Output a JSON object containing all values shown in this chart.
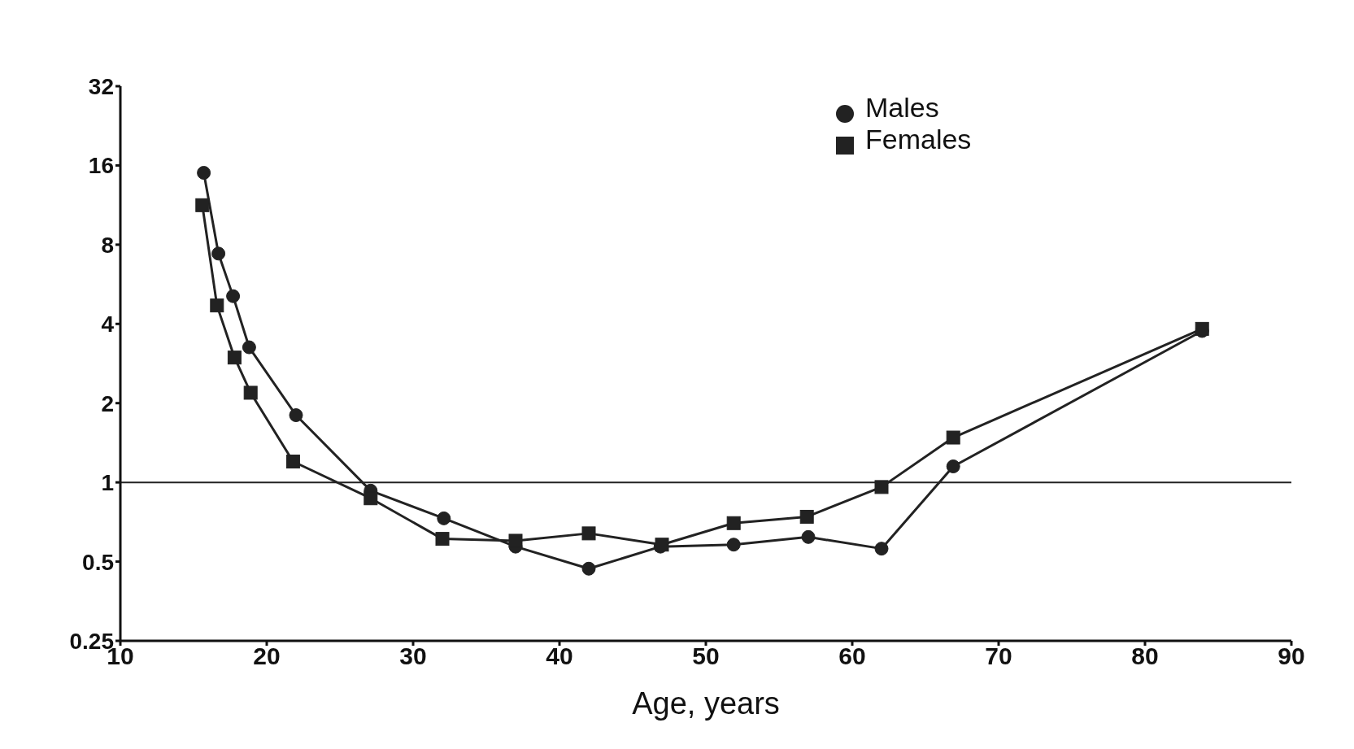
{
  "chart_data": {
    "type": "line",
    "xlabel": "Age, years",
    "log": "y",
    "xlim": [
      10,
      90
    ],
    "xticks": [
      10,
      20,
      30,
      40,
      50,
      60,
      70,
      80,
      90
    ],
    "ylim": [
      0.25,
      32
    ],
    "yticks": [
      0.25,
      0.5,
      1,
      2,
      4,
      8,
      16,
      32
    ],
    "grid": false,
    "legend": "top right",
    "line_style": "solid",
    "series": [
      {
        "name": "Males",
        "color": "#222222",
        "marker": "circle",
        "x": [
          15.7,
          16.7,
          17.7,
          18.8,
          22.0,
          27.1,
          32.1,
          37.0,
          42.0,
          46.9,
          51.9,
          57.0,
          62.0,
          66.9,
          83.9
        ],
        "values": [
          15.0,
          7.4,
          5.1,
          3.26,
          1.8,
          0.93,
          0.73,
          0.57,
          0.47,
          0.57,
          0.58,
          0.62,
          0.56,
          1.15,
          3.76
        ]
      },
      {
        "name": "Females",
        "color": "#222222",
        "marker": "square",
        "x": [
          15.6,
          16.6,
          17.8,
          18.9,
          21.8,
          27.1,
          32.0,
          37.0,
          42.0,
          47.0,
          51.9,
          56.9,
          62.0,
          66.9,
          83.9
        ],
        "values": [
          11.3,
          4.7,
          2.98,
          2.19,
          1.2,
          0.87,
          0.61,
          0.6,
          0.64,
          0.58,
          0.7,
          0.74,
          0.96,
          1.48,
          3.83
        ]
      }
    ],
    "ref_lines": [
      {
        "axis": "y",
        "value": 1,
        "color": "#222222",
        "line_style": "solid"
      }
    ]
  }
}
